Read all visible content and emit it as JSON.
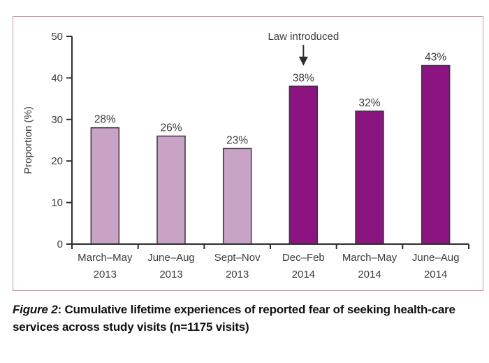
{
  "figure": {
    "border_color": "#cc8fa0",
    "caption": {
      "label": "Figure 2",
      "separator": ": ",
      "text": "Cumulative lifetime experiences of reported fear of seeking health-care services across study visits (n=1175 visits)"
    }
  },
  "chart_data": {
    "type": "bar",
    "title": "",
    "xlabel": "",
    "ylabel": "Proportion (%)",
    "ylim": [
      0,
      50
    ],
    "yticks": [
      0,
      10,
      20,
      30,
      40,
      50
    ],
    "grid": false,
    "legend": null,
    "categories": [
      "March–May 2013",
      "June–Aug 2013",
      "Sept–Nov 2013",
      "Dec–Feb 2014",
      "March–May 2014",
      "June–Aug 2014"
    ],
    "category_lines": [
      [
        "March–May",
        "2013"
      ],
      [
        "June–Aug",
        "2013"
      ],
      [
        "Sept–Nov",
        "2013"
      ],
      [
        "Dec–Feb",
        "2014"
      ],
      [
        "March–May",
        "2014"
      ],
      [
        "June–Aug",
        "2014"
      ]
    ],
    "values": [
      28,
      26,
      23,
      38,
      32,
      43
    ],
    "bar_labels": [
      "28%",
      "26%",
      "23%",
      "38%",
      "32%",
      "43%"
    ],
    "bar_colors": [
      "#c9a3c6",
      "#c9a3c6",
      "#c9a3c6",
      "#8c1480",
      "#8c1480",
      "#8c1480"
    ],
    "bar_edge_color": "#3b3440",
    "axis_color": "#2e2e2e",
    "text_color": "#3c3c3c",
    "annotation": {
      "text": "Law introduced",
      "target_category": "Dec–Feb 2014",
      "target_index": 3
    }
  }
}
